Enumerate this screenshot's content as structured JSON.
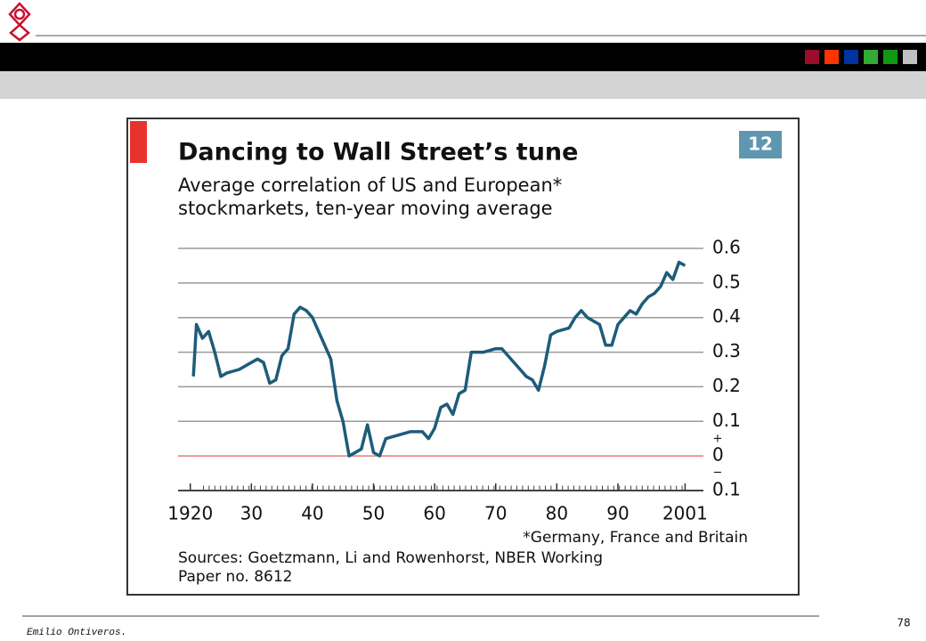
{
  "chart_data": {
    "type": "line",
    "title": "Dancing to Wall Street’s tune",
    "subtitle": [
      "Average correlation of US and European*",
      "stockmarkets, ten-year moving average"
    ],
    "chart_number": 12,
    "footnote": "*Germany, France and Britain",
    "source": [
      "Sources: Goetzmann, Li and Rowenhorst, NBER Working",
      "Paper no. 8612"
    ],
    "sign_markers": [
      "+",
      "−"
    ],
    "x": [
      1920.5,
      1921,
      1922,
      1923,
      1924,
      1925,
      1926,
      1928,
      1930,
      1931,
      1932,
      1933,
      1934,
      1935,
      1936,
      1937,
      1938,
      1939,
      1940,
      1941,
      1942,
      1943,
      1944,
      1945,
      1946,
      1947,
      1948,
      1949,
      1950,
      1951,
      1952,
      1954,
      1956,
      1958,
      1959,
      1960,
      1961,
      1962,
      1963,
      1964,
      1965,
      1966,
      1968,
      1970,
      1971,
      1972,
      1974,
      1975,
      1976,
      1977,
      1978,
      1979,
      1980,
      1982,
      1983,
      1984,
      1985,
      1986,
      1987,
      1988,
      1989,
      1990,
      1991,
      1992,
      1993,
      1994,
      1995,
      1996,
      1997,
      1998,
      1999,
      2000,
      2001
    ],
    "series": [
      {
        "color": "#1d5c7a",
        "values": [
          0.23,
          0.38,
          0.34,
          0.36,
          0.3,
          0.23,
          0.24,
          0.25,
          0.27,
          0.28,
          0.27,
          0.21,
          0.22,
          0.29,
          0.31,
          0.41,
          0.43,
          0.42,
          0.4,
          0.36,
          0.32,
          0.28,
          0.16,
          0.1,
          0.0,
          0.01,
          0.02,
          0.09,
          0.01,
          0.0,
          0.05,
          0.06,
          0.07,
          0.07,
          0.05,
          0.08,
          0.14,
          0.15,
          0.12,
          0.18,
          0.19,
          0.3,
          0.3,
          0.31,
          0.31,
          0.29,
          0.25,
          0.23,
          0.22,
          0.19,
          0.26,
          0.35,
          0.36,
          0.37,
          0.4,
          0.42,
          0.4,
          0.39,
          0.38,
          0.32,
          0.32,
          0.38,
          0.4,
          0.42,
          0.41,
          0.44,
          0.46,
          0.47,
          0.49,
          0.53,
          0.51,
          0.56,
          0.55
        ]
      }
    ],
    "xlim": [
      1918,
      2004
    ],
    "xticks": [
      1920,
      {
        "value": 1930,
        "label": "30"
      },
      {
        "value": 1940,
        "label": "40"
      },
      {
        "value": 1950,
        "label": "50"
      },
      {
        "value": 1960,
        "label": "60"
      },
      {
        "value": 1970,
        "label": "70"
      },
      {
        "value": 1980,
        "label": "80"
      },
      {
        "value": 1990,
        "label": "90"
      },
      2001
    ],
    "ylim": [
      -0.1,
      0.6
    ],
    "yticks": [
      {
        "value": -0.1,
        "label": "0.1"
      },
      0,
      0.1,
      0.2,
      0.3,
      0.4,
      0.5,
      0.6
    ],
    "grid": true,
    "grid_color": "#9a9a9a",
    "zero_line_color": "#e87a7a"
  },
  "footer": {
    "author": "Emilio Ontiveros.",
    "page": 78
  }
}
